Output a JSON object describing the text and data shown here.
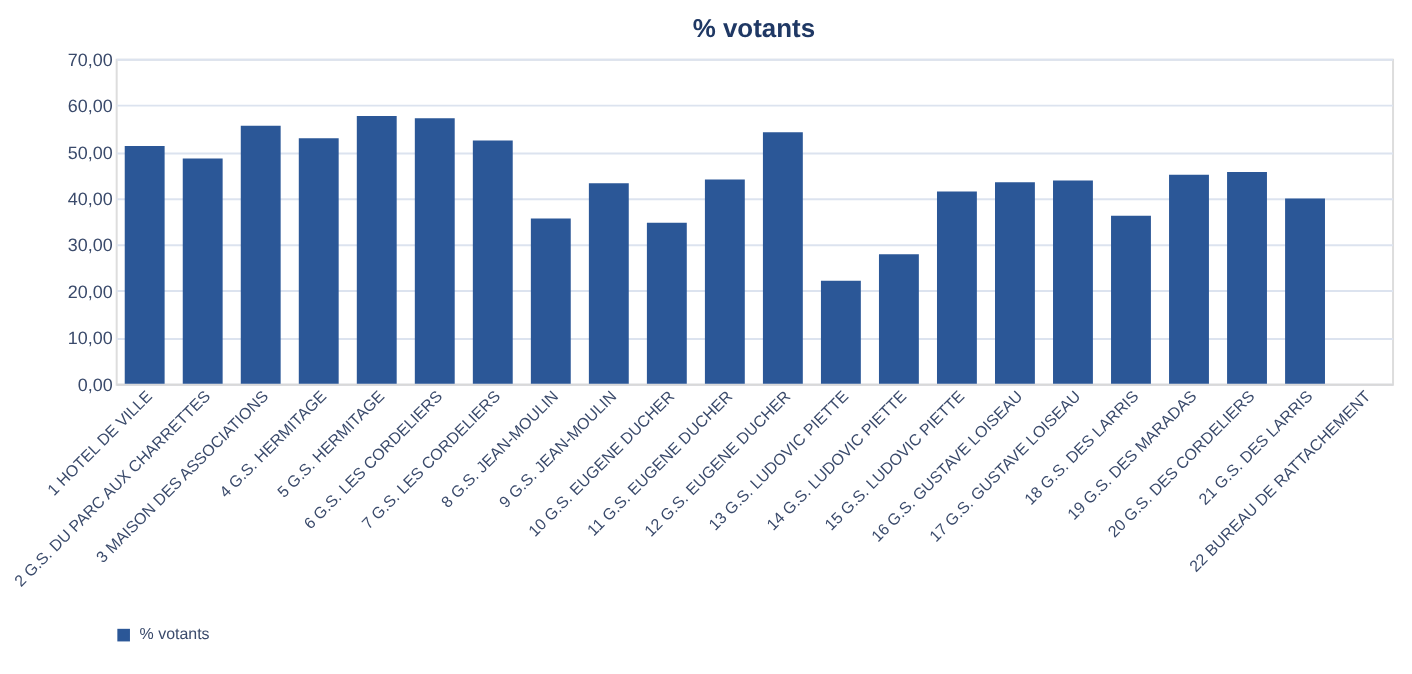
{
  "chart_data": {
    "type": "bar",
    "title": "% votants",
    "categories": [
      "1 HOTEL DE VILLE",
      "2 G.S. DU PARC AUX CHARRETTES",
      "3 MAISON DES ASSOCIATIONS",
      "4 G.S. HERMITAGE",
      "5 G.S. HERMITAGE",
      "6 G.S. LES CORDELIERS",
      "7 G.S. LES CORDELIERS",
      "8 G.S. JEAN-MOULIN",
      "9 G.S. JEAN-MOULIN",
      "10 G.S. EUGENE DUCHER",
      "11 G.S. EUGENE DUCHER",
      "12 G.S. EUGENE DUCHER",
      "13 G.S. LUDOVIC PIETTE",
      "14 G.S. LUDOVIC PIETTE",
      "15 G.S. LUDOVIC PIETTE",
      "16 G.S. GUSTAVE LOISEAU",
      "17 G.S. GUSTAVE LOISEAU",
      "18 G.S. DES LARRIS",
      "19 G.S. DES MARADAS",
      "20 G.S. DES CORDELIERS",
      "21 G.S. DES LARRIS",
      "22 BUREAU DE RATTACHEMENT"
    ],
    "series": [
      {
        "name": "% votants",
        "color": "#2b5797",
        "values": [
          51.2,
          48.5,
          55.6,
          52.9,
          57.7,
          57.2,
          52.4,
          35.6,
          43.2,
          34.7,
          44.0,
          54.2,
          22.2,
          27.9,
          41.4,
          43.4,
          43.8,
          36.2,
          45.0,
          45.6,
          39.9,
          null
        ]
      }
    ],
    "ylim": [
      0,
      70
    ],
    "yticks": [
      {
        "value": 0,
        "label": "0,00"
      },
      {
        "value": 10,
        "label": "10,00"
      },
      {
        "value": 20,
        "label": "20,00"
      },
      {
        "value": 30,
        "label": "30,00"
      },
      {
        "value": 40,
        "label": "40,00"
      },
      {
        "value": 50,
        "label": "50,00"
      },
      {
        "value": 60,
        "label": "60,00"
      },
      {
        "value": 70,
        "label": "70,00"
      }
    ],
    "grid": "y",
    "legend": "bottom"
  }
}
